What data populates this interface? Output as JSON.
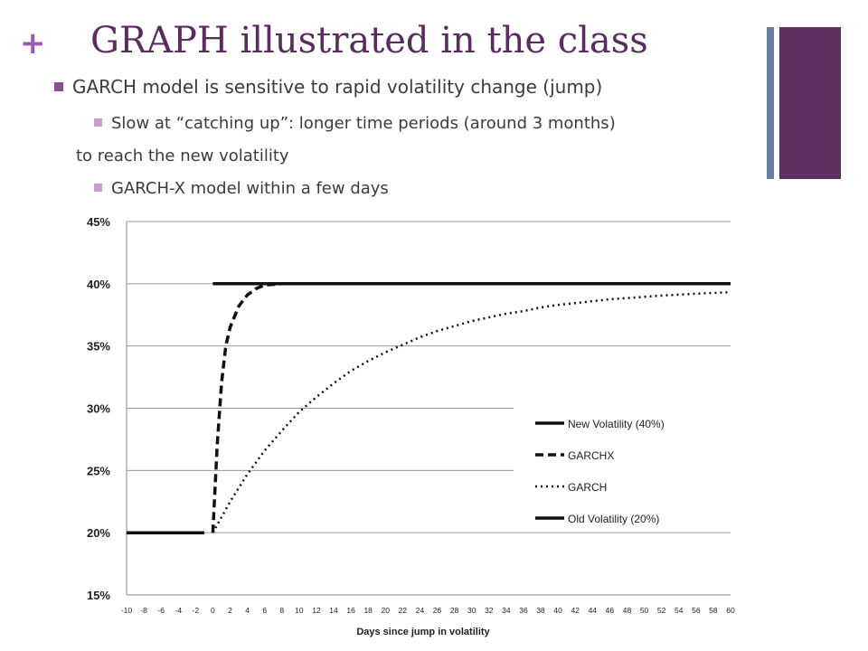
{
  "slide": {
    "plus": "+",
    "title": "GRAPH illustrated in the class",
    "bullet1": "GARCH model is sensitive to rapid volatility change (jump)",
    "bullet2": "Slow at “catching up”: longer time periods (around 3 months)",
    "bullet2b": "to reach the new volatility",
    "bullet3": "GARCH-X model within a few days"
  },
  "colors": {
    "accent": "#5d3060",
    "plus": "#9b59b6",
    "side_bar": "#6f7da0"
  },
  "chart_data": {
    "type": "line",
    "xlabel": "Days since jump in volatility",
    "ylabel": "",
    "x_ticks": [
      "-10",
      "-8",
      "-6",
      "-4",
      "-2",
      "0",
      "2",
      "4",
      "6",
      "8",
      "10",
      "12",
      "14",
      "16",
      "18",
      "20",
      "22",
      "24",
      "26",
      "28",
      "30",
      "32",
      "34",
      "36",
      "38",
      "40",
      "42",
      "44",
      "46",
      "48",
      "50",
      "52",
      "54",
      "56",
      "58",
      "60"
    ],
    "y_ticks": [
      "15%",
      "20%",
      "25%",
      "30%",
      "35%",
      "40%",
      "45%"
    ],
    "xlim": [
      -10,
      60
    ],
    "ylim": [
      15,
      45
    ],
    "grid": "horizontal",
    "legend_position": "right",
    "series": [
      {
        "name": "New Volatility (40%)",
        "style": "solid",
        "points": [
          [
            0,
            40
          ],
          [
            60,
            40
          ]
        ]
      },
      {
        "name": "GARCHX",
        "style": "dashed",
        "points": [
          [
            0,
            20
          ],
          [
            0.5,
            27
          ],
          [
            1,
            32
          ],
          [
            1.5,
            35
          ],
          [
            2,
            36.5
          ],
          [
            3,
            38.2
          ],
          [
            4,
            39.1
          ],
          [
            5,
            39.6
          ],
          [
            6,
            39.9
          ],
          [
            8,
            40
          ]
        ]
      },
      {
        "name": "GARCH",
        "style": "dotted",
        "points": [
          [
            0,
            20
          ],
          [
            2,
            22.5
          ],
          [
            4,
            24.7
          ],
          [
            6,
            26.6
          ],
          [
            8,
            28.2
          ],
          [
            10,
            29.7
          ],
          [
            12,
            30.9
          ],
          [
            14,
            32
          ],
          [
            16,
            33
          ],
          [
            18,
            33.8
          ],
          [
            20,
            34.5
          ],
          [
            22,
            35.1
          ],
          [
            24,
            35.7
          ],
          [
            26,
            36.2
          ],
          [
            28,
            36.6
          ],
          [
            30,
            37
          ],
          [
            32,
            37.3
          ],
          [
            34,
            37.6
          ],
          [
            36,
            37.8
          ],
          [
            38,
            38.1
          ],
          [
            40,
            38.3
          ],
          [
            42,
            38.45
          ],
          [
            44,
            38.6
          ],
          [
            46,
            38.75
          ],
          [
            48,
            38.85
          ],
          [
            50,
            38.95
          ],
          [
            52,
            39.05
          ],
          [
            54,
            39.12
          ],
          [
            56,
            39.2
          ],
          [
            58,
            39.26
          ],
          [
            60,
            39.32
          ]
        ]
      },
      {
        "name": "Old Volatility (20%)",
        "style": "solid",
        "points": [
          [
            -10,
            20
          ],
          [
            -1,
            20
          ]
        ]
      }
    ]
  }
}
